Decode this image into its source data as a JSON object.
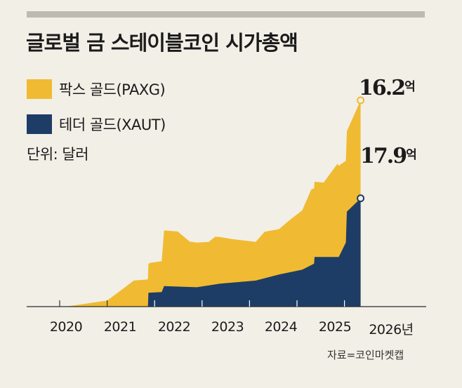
{
  "chart_data": {
    "type": "area",
    "stacked": true,
    "title": "글로벌 금 스테이블코인 시가총액",
    "unit_note": "단위: 달러",
    "x_tick_labels": [
      "2020",
      "2021",
      "2022",
      "2023",
      "2024",
      "2025",
      "2026년"
    ],
    "x_ticks": [
      2020,
      2021,
      2022,
      2023,
      2024,
      2025,
      2026
    ],
    "legend_placement": "top-left",
    "grid": false,
    "ylim": [
      0,
      34.1
    ],
    "y_unit": "억 달러",
    "series": [
      {
        "name": "테더 골드(XAUT)",
        "color": "#1e3d66",
        "points": [
          [
            2021.86,
            0
          ],
          [
            2021.87,
            2.3
          ],
          [
            2022.15,
            2.4
          ],
          [
            2022.2,
            3.4
          ],
          [
            2022.89,
            3.2
          ],
          [
            2023.38,
            3.8
          ],
          [
            2024.13,
            4.3
          ],
          [
            2024.62,
            5.3
          ],
          [
            2025.11,
            6.1
          ],
          [
            2025.36,
            7.1
          ],
          [
            2025.37,
            8.2
          ],
          [
            2025.88,
            8.2
          ],
          [
            2026.03,
            10.6
          ],
          [
            2026.05,
            15.7
          ],
          [
            2026.34,
            17.9
          ]
        ],
        "end_label": "17.9",
        "end_suffix": "억"
      },
      {
        "name": "팍스 골드(PAXG)",
        "color": "#f0bb32",
        "points": [
          [
            2020.12,
            0
          ],
          [
            2021.0,
            1.0
          ],
          [
            2021.36,
            3.1
          ],
          [
            2021.56,
            4.3
          ],
          [
            2021.85,
            4.5
          ],
          [
            2021.89,
            4.9
          ],
          [
            2022.15,
            5.1
          ],
          [
            2022.2,
            9.2
          ],
          [
            2022.49,
            9.1
          ],
          [
            2022.74,
            7.5
          ],
          [
            2023.14,
            7.2
          ],
          [
            2023.28,
            7.9
          ],
          [
            2023.63,
            7.2
          ],
          [
            2024.13,
            6.4
          ],
          [
            2024.32,
            7.7
          ],
          [
            2024.62,
            7.5
          ],
          [
            2024.86,
            8.7
          ],
          [
            2025.11,
            9.8
          ],
          [
            2025.3,
            12.5
          ],
          [
            2025.56,
            12.3
          ],
          [
            2025.85,
            15.4
          ],
          [
            2026.05,
            13.3
          ],
          [
            2026.34,
            16.2
          ]
        ],
        "end_label": "16.2",
        "end_suffix": "억"
      }
    ]
  },
  "legend": [
    {
      "label": "팍스 골드(PAXG)",
      "color": "#f0bb32"
    },
    {
      "label": "테더 골드(XAUT)",
      "color": "#1e3d66"
    }
  ],
  "source": "자료=코인마켓캡"
}
